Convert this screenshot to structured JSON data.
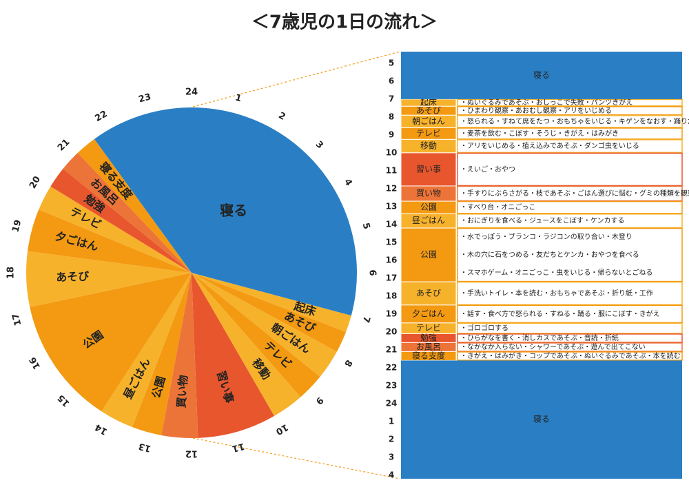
{
  "chart_data": {
    "type": "pie",
    "title": "＜7歳児の1日の流れ＞",
    "hour_ticks": [
      1,
      2,
      3,
      4,
      5,
      6,
      7,
      8,
      9,
      10,
      11,
      12,
      13,
      14,
      15,
      16,
      17,
      18,
      19,
      20,
      21,
      22,
      23,
      24
    ],
    "segments": [
      {
        "label": "起床",
        "start": 7.0,
        "end": 7.4,
        "color": "#f7b22c",
        "notes": [
          "・ぬいぐるみであそぶ・おしっこで失敗・パンツきがえ"
        ]
      },
      {
        "label": "あそび",
        "start": 7.4,
        "end": 7.9,
        "color": "#f39a12",
        "notes": [
          "・ひまわり観察・あおむし観察・アリをいじめる"
        ]
      },
      {
        "label": "朝ごはん",
        "start": 7.9,
        "end": 8.6,
        "color": "#f7b22c",
        "notes": [
          "・怒られる・すねて席をたつ・おもちゃをいじる・キゲンをなおす・踊りだす"
        ]
      },
      {
        "label": "テレビ",
        "start": 8.6,
        "end": 9.25,
        "color": "#f39a12",
        "notes": [
          "・麦茶を飲む・こぼす・そうじ・きがえ・はみがき"
        ]
      },
      {
        "label": "移動",
        "start": 9.25,
        "end": 10.0,
        "color": "#f7b22c",
        "notes": [
          "・アリをいじめる・植え込みであそぶ・ダンゴ虫をいじる"
        ]
      },
      {
        "label": "習い事",
        "start": 10.0,
        "end": 11.85,
        "color": "#e8562e",
        "notes": [
          "・えいご・おやつ"
        ]
      },
      {
        "label": "買い物",
        "start": 11.85,
        "end": 12.7,
        "color": "#ed7438",
        "notes": [
          "・手すりにぶらさがる・枝であそぶ・ごはん選びに悩む・グミの種類を観察"
        ]
      },
      {
        "label": "公園",
        "start": 12.7,
        "end": 13.4,
        "color": "#f39a12",
        "notes": [
          "・すべり台・オニごっこ"
        ]
      },
      {
        "label": "昼ごはん",
        "start": 13.4,
        "end": 14.2,
        "color": "#f7b22c",
        "notes": [
          "・おにぎりを食べる・ジュースをこぼす・ケンカする"
        ]
      },
      {
        "label": "公園",
        "start": 14.2,
        "end": 17.2,
        "color": "#f39a12",
        "notes": [
          "・水でっぽう・ブランコ・ラジコンの取り合い・木登り",
          "・木の穴に石をつめる・友だちとケンカ・おやつを食べる",
          "・スマホゲーム・オニごっこ・虫をいじる・帰らないとごねる"
        ]
      },
      {
        "label": "あそび",
        "start": 17.2,
        "end": 18.5,
        "color": "#f7b22c",
        "notes": [
          "・手洗いトイレ・本を読む・おもちゃであそぶ・折り紙・工作"
        ]
      },
      {
        "label": "夕ごはん",
        "start": 18.5,
        "end": 19.5,
        "color": "#f39a12",
        "notes": [
          "・話す・食べ方で怒られる・すねる・踊る・服にこぼす・きがえ"
        ]
      },
      {
        "label": "テレビ",
        "start": 19.5,
        "end": 20.1,
        "color": "#f7b22c",
        "notes": [
          "・ゴロゴロする"
        ]
      },
      {
        "label": "勉強",
        "start": 20.1,
        "end": 20.6,
        "color": "#e8562e",
        "notes": [
          "・ひらがなを書く・消しカスであそぶ・音読・折紙"
        ]
      },
      {
        "label": "お風呂",
        "start": 20.6,
        "end": 21.1,
        "color": "#ed7438",
        "notes": [
          "・なかなか入らない・シャワーであそぶ・遊んで出てこない"
        ]
      },
      {
        "label": "寝る支度",
        "start": 21.1,
        "end": 21.6,
        "color": "#f39a12",
        "notes": [
          "・きがえ・はみがき・コップであそぶ・ぬいぐるみであそぶ・本を読む"
        ]
      },
      {
        "label": "寝る",
        "start": 21.6,
        "end": 7.0,
        "color": "#2a7fc4",
        "notes": []
      }
    ],
    "table": {
      "ylim": [
        4.35,
        28.2
      ],
      "yticks": [
        5,
        6,
        7,
        8,
        9,
        10,
        11,
        12,
        13,
        14,
        15,
        16,
        17,
        18,
        19,
        20,
        21,
        22,
        23,
        24,
        {
          "value": 25,
          "label": "1"
        },
        {
          "value": 26,
          "label": "2"
        },
        {
          "value": 27,
          "label": "3"
        },
        {
          "value": 28,
          "label": "4"
        }
      ]
    }
  }
}
